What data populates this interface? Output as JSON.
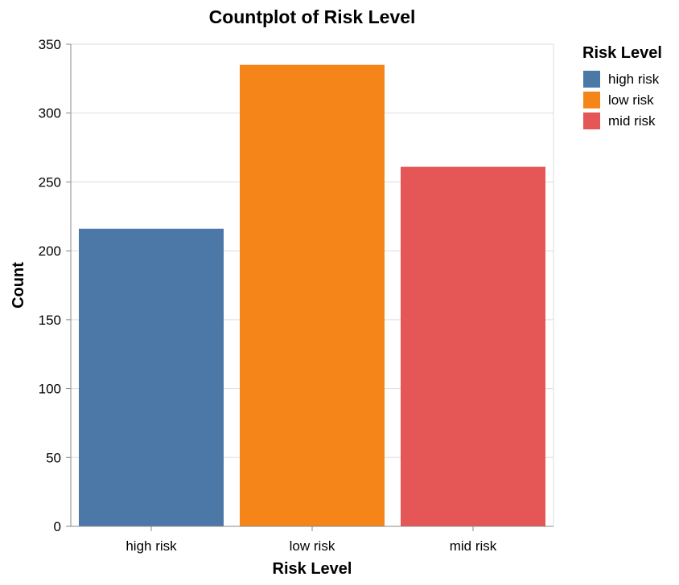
{
  "chart_data": {
    "type": "bar",
    "title": "Countplot of Risk Level",
    "xlabel": "Risk Level",
    "ylabel": "Count",
    "categories": [
      "high risk",
      "low risk",
      "mid risk"
    ],
    "values": [
      216,
      335,
      261
    ],
    "colors": [
      "#4c78a8",
      "#f58518",
      "#e45756"
    ],
    "ylim": [
      0,
      350
    ],
    "yticks": [
      0,
      50,
      100,
      150,
      200,
      250,
      300,
      350
    ],
    "grid": true,
    "legend": {
      "title": "Risk Level",
      "position": "top-right",
      "entries": [
        "high risk",
        "low risk",
        "mid risk"
      ]
    }
  }
}
